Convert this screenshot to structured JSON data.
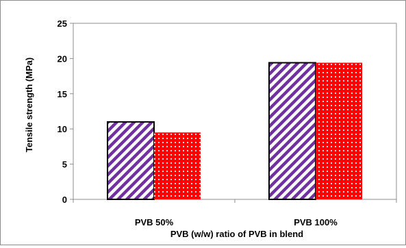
{
  "chart_data": {
    "type": "bar",
    "title": "",
    "xlabel": "PVB (w/w) ratio of PVB in blend",
    "ylabel": "Tensile strength  (MPa)",
    "categories": [
      "PVB 50%",
      "PVB 100%"
    ],
    "series": [
      {
        "values": [
          11.0,
          19.4
        ],
        "fill": "diagonal-stripes",
        "color": "#7030a0"
      },
      {
        "values": [
          9.5,
          19.4
        ],
        "fill": "dotted",
        "color": "#ff0000"
      }
    ],
    "ylim": [
      0,
      25
    ],
    "yticks": [
      "0",
      "5",
      "10",
      "15",
      "20",
      "25"
    ],
    "grid": false,
    "legend": "none"
  }
}
